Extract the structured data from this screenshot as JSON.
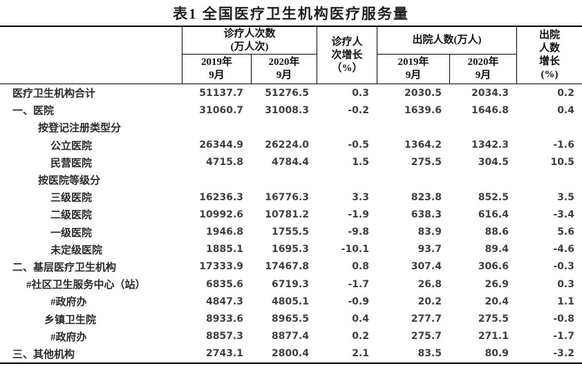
{
  "title": "表1 全国医疗卫生机构医疗服务量",
  "colors": {
    "border": "#000000",
    "header_text": "#111111",
    "label_text": "#2b2b2b",
    "number_text": "#3f3f3f",
    "background": "#ffffff"
  },
  "table": {
    "header": {
      "corner": "",
      "visits_group": "诊疗人次数\n(万人次)",
      "visits_2019": "2019年\n9月",
      "visits_2020": "2020年\n9月",
      "visits_growth": "诊疗人\n次增长\n（%）",
      "discharges_group": "出院人数(万人)",
      "discharges_2019": "2019年\n9月",
      "discharges_2020": "2020年\n9月",
      "discharges_growth": "出院\n人数\n增长\n(%)"
    },
    "rows": [
      {
        "label": "医疗卫生机构合计",
        "indent": 0,
        "values": [
          "51137.7",
          "51276.5",
          "0.3",
          "2030.5",
          "2034.3",
          "0.2"
        ]
      },
      {
        "label": "一、医院",
        "indent": 0,
        "values": [
          "31060.7",
          "31008.3",
          "-0.2",
          "1639.6",
          "1646.8",
          "0.4"
        ]
      },
      {
        "label": "按登记注册类型分",
        "indent": 2,
        "values": [
          "",
          "",
          "",
          "",
          "",
          ""
        ]
      },
      {
        "label": "公立医院",
        "indent": 4,
        "values": [
          "26344.9",
          "26224.0",
          "-0.5",
          "1364.2",
          "1342.3",
          "-1.6"
        ]
      },
      {
        "label": "民营医院",
        "indent": 4,
        "values": [
          "4715.8",
          "4784.4",
          "1.5",
          "275.5",
          "304.5",
          "10.5"
        ]
      },
      {
        "label": "按医院等级分",
        "indent": 2,
        "values": [
          "",
          "",
          "",
          "",
          "",
          ""
        ]
      },
      {
        "label": "三级医院",
        "indent": 4,
        "values": [
          "16236.3",
          "16776.3",
          "3.3",
          "823.8",
          "852.5",
          "3.5"
        ]
      },
      {
        "label": "二级医院",
        "indent": 4,
        "values": [
          "10992.6",
          "10781.2",
          "-1.9",
          "638.3",
          "616.4",
          "-3.4"
        ]
      },
      {
        "label": "一级医院",
        "indent": 4,
        "values": [
          "1946.8",
          "1755.5",
          "-9.8",
          "83.9",
          "88.6",
          "5.6"
        ]
      },
      {
        "label": "未定级医院",
        "indent": 4,
        "values": [
          "1885.1",
          "1695.3",
          "-10.1",
          "93.7",
          "89.4",
          "-4.6"
        ]
      },
      {
        "label": "二、基层医疗卫生机构",
        "indent": 0,
        "values": [
          "17333.9",
          "17467.8",
          "0.8",
          "307.4",
          "306.6",
          "-0.3"
        ]
      },
      {
        "label": "#社区卫生服务中心（站）",
        "indent": 1,
        "values": [
          "6835.6",
          "6719.3",
          "-1.7",
          "26.8",
          "26.9",
          "0.3"
        ]
      },
      {
        "label": "#政府办",
        "indent": 4,
        "values": [
          "4847.3",
          "4805.1",
          "-0.9",
          "20.2",
          "20.4",
          "1.1"
        ]
      },
      {
        "label": "乡镇卫生院",
        "indent": 3,
        "values": [
          "8933.6",
          "8965.5",
          "0.4",
          "277.7",
          "275.5",
          "-0.8"
        ]
      },
      {
        "label": "#政府办",
        "indent": 4,
        "values": [
          "8857.3",
          "8877.4",
          "0.2",
          "275.7",
          "271.1",
          "-1.7"
        ]
      },
      {
        "label": "三、其他机构",
        "indent": 0,
        "values": [
          "2743.1",
          "2800.4",
          "2.1",
          "83.5",
          "80.9",
          "-3.2"
        ]
      }
    ]
  }
}
